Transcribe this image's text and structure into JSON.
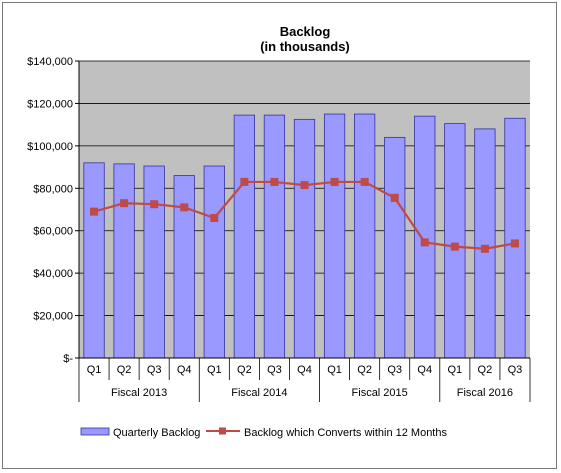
{
  "chart_data": {
    "type": "bar",
    "title": "Backlog",
    "subtitle": "(in thousands)",
    "categories": [
      "Q1",
      "Q2",
      "Q3",
      "Q4",
      "Q1",
      "Q2",
      "Q3",
      "Q4",
      "Q1",
      "Q2",
      "Q3",
      "Q4",
      "Q1",
      "Q2",
      "Q3"
    ],
    "groups": [
      {
        "label": "Fiscal 2013",
        "count": 4
      },
      {
        "label": "Fiscal 2014",
        "count": 4
      },
      {
        "label": "Fiscal 2015",
        "count": 4
      },
      {
        "label": "Fiscal 2016",
        "count": 3
      }
    ],
    "series": [
      {
        "name": "Quarterly Backlog",
        "type": "bar",
        "color": "#9999FF",
        "values": [
          92000,
          91500,
          90500,
          86000,
          90500,
          114500,
          114500,
          112500,
          115000,
          115000,
          104000,
          114000,
          110500,
          108000,
          113000
        ]
      },
      {
        "name": "Backlog which Converts within 12 Months",
        "type": "line",
        "color": "#BE4B48",
        "values": [
          69000,
          73000,
          72500,
          71000,
          66000,
          83000,
          83000,
          81500,
          83000,
          83000,
          75500,
          54500,
          52500,
          51500,
          54000
        ]
      }
    ],
    "ylim": [
      0,
      140000
    ],
    "yticks": [
      "$-",
      "$20,000",
      "$40,000",
      "$60,000",
      "$80,000",
      "$100,000",
      "$120,000",
      "$140,000"
    ],
    "ytick_values": [
      0,
      20000,
      40000,
      60000,
      80000,
      100000,
      120000,
      140000
    ],
    "grid": true,
    "plot_background": "#C0C0C0",
    "legend_position": "bottom"
  }
}
